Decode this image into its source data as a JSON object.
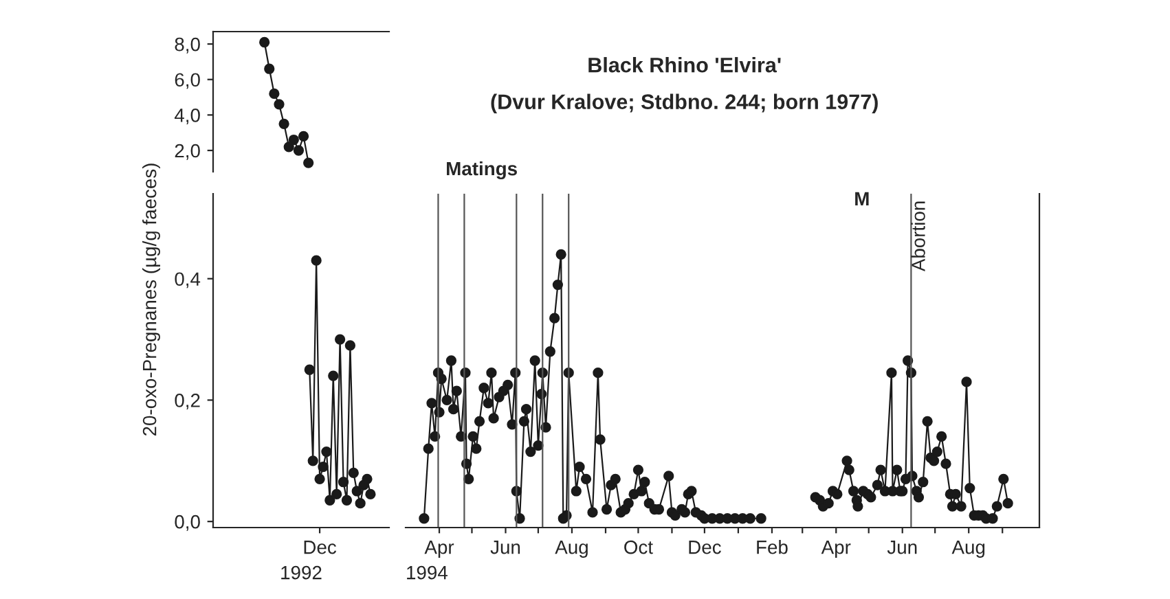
{
  "chart_data": [
    {
      "type": "line",
      "categories": [
        null,
        null,
        null,
        null,
        null,
        null,
        null,
        null,
        null,
        null,
        null,
        null,
        null,
        null,
        null,
        null,
        null,
        null,
        null,
        null,
        null,
        null,
        null,
        null,
        null,
        null,
        null,
        null,
        null,
        null,
        null,
        null,
        null,
        null,
        null,
        null
      ],
      "ylim": [
        0.8,
        8.7
      ],
      "yticks": [
        {
          "value": 2,
          "label": "2,0"
        },
        {
          "value": 4,
          "label": "4,0"
        },
        {
          "value": 6,
          "label": "6,0"
        },
        {
          "value": 8,
          "label": "8,0"
        }
      ],
      "tick_labels": "y",
      "marker": "circle",
      "line_style": "solid",
      "grid": false,
      "legend": false,
      "series": [
        {
          "color": "#1a1a1a",
          "values": [
            null,
            null,
            null,
            null,
            null,
            null,
            null,
            null,
            null,
            null,
            8.1,
            6.6,
            5.2,
            4.6,
            3.5,
            2.2,
            2.6,
            2.0,
            2.8,
            1.3,
            null,
            null,
            null,
            null,
            null,
            null,
            null,
            null,
            null,
            null,
            null,
            null,
            null,
            null,
            null,
            null
          ]
        }
      ]
    },
    {
      "type": "line",
      "categories": [
        null,
        null,
        null,
        null,
        null,
        null,
        null,
        null,
        null,
        null,
        null,
        null,
        null,
        null,
        null,
        null,
        null,
        null,
        null,
        null,
        null,
        null,
        null,
        null,
        null,
        null,
        null,
        null,
        null,
        null,
        null,
        "Dec",
        null,
        null,
        null,
        null,
        null,
        null,
        null,
        null,
        null,
        null,
        null,
        null,
        null,
        null,
        null,
        null,
        null,
        null,
        null,
        null
      ],
      "ylim": [
        -0.01,
        0.54
      ],
      "yticks": [
        {
          "value": 0,
          "label": "0,0"
        },
        {
          "value": 0.2,
          "label": "0,2"
        },
        {
          "value": 0.4,
          "label": "0,4"
        }
      ],
      "xlabel": "1992",
      "ylabel": "20-oxo-Pregnanes (µg/g faeces)",
      "marker": "circle",
      "line_style": "solid",
      "grid": false,
      "legend": false,
      "series": [
        {
          "color": "#1a1a1a",
          "values": [
            null,
            null,
            null,
            null,
            null,
            null,
            null,
            null,
            null,
            null,
            null,
            null,
            null,
            null,
            null,
            null,
            null,
            null,
            null,
            null,
            null,
            null,
            null,
            null,
            null,
            null,
            null,
            null,
            0.25,
            0.1,
            0.43,
            0.07,
            0.09,
            0.115,
            0.035,
            0.24,
            0.045,
            0.3,
            0.065,
            0.035,
            0.29,
            0.08,
            0.05,
            0.03,
            0.06,
            0.07,
            0.045,
            null,
            null,
            null,
            null,
            null
          ]
        }
      ]
    },
    {
      "type": "line",
      "xlim": [
        "1994-03-01",
        "1995-10-05"
      ],
      "ylim": [
        -0.01,
        0.54
      ],
      "xticks": [
        {
          "value": "1994-04-01",
          "label": "Apr"
        },
        {
          "value": "1994-05-01",
          "label": null
        },
        {
          "value": "1994-06-01",
          "label": "Jun"
        },
        {
          "value": "1994-07-01",
          "label": null
        },
        {
          "value": "1994-08-01",
          "label": "Aug"
        },
        {
          "value": "1994-09-01",
          "label": null
        },
        {
          "value": "1994-10-01",
          "label": "Oct"
        },
        {
          "value": "1994-11-01",
          "label": null
        },
        {
          "value": "1994-12-01",
          "label": "Dec"
        },
        {
          "value": "1995-01-01",
          "label": null
        },
        {
          "value": "1995-02-01",
          "label": "Feb"
        },
        {
          "value": "1995-03-01",
          "label": null
        },
        {
          "value": "1995-04-01",
          "label": "Apr"
        },
        {
          "value": "1995-05-01",
          "label": null
        },
        {
          "value": "1995-06-01",
          "label": "Jun"
        },
        {
          "value": "1995-07-01",
          "label": null
        },
        {
          "value": "1995-08-01",
          "label": "Aug"
        },
        {
          "value": "1995-09-01",
          "label": null
        }
      ],
      "yticks": [
        {
          "value": 0,
          "label": null
        },
        {
          "value": 0.2,
          "label": null
        },
        {
          "value": 0.4,
          "label": null
        }
      ],
      "tick_labels": "x",
      "xlabel": "1994",
      "title": "Black Rhino 'Elvira'",
      "subtitle": "(Dvur Kralove; Stdbno. 244; born 1977)",
      "marker": "circle",
      "line_style": "solid",
      "grid": false,
      "legend": false,
      "ref_lines": [
        {
          "axis": "x",
          "value": "1994-03-31",
          "color": "#555555"
        },
        {
          "axis": "x",
          "value": "1994-04-24",
          "color": "#555555"
        },
        {
          "axis": "x",
          "value": "1994-06-11",
          "color": "#555555"
        },
        {
          "axis": "x",
          "value": "1994-07-05",
          "color": "#555555"
        },
        {
          "axis": "x",
          "value": "1994-07-29",
          "color": "#555555"
        },
        {
          "axis": "x",
          "value": "1995-06-09",
          "label": "Abortion",
          "color": "#555555"
        }
      ],
      "annotations": [
        "Matings",
        "M"
      ],
      "series": [
        {
          "color": "#1a1a1a",
          "x": [
            "1994-03-18",
            "1994-03-22",
            "1994-03-25",
            "1994-03-28",
            "1994-03-31",
            "1994-04-01",
            "1994-04-03",
            "1994-04-08",
            "1994-04-12",
            "1994-04-14",
            "1994-04-17",
            "1994-04-21",
            "1994-04-25",
            "1994-04-26",
            "1994-04-28",
            "1994-05-02",
            "1994-05-05",
            "1994-05-08",
            "1994-05-12",
            "1994-05-16",
            "1994-05-19",
            "1994-05-21",
            "1994-05-26",
            "1994-05-30",
            "1994-06-03",
            "1994-06-07",
            "1994-06-10",
            "1994-06-11",
            "1994-06-14",
            "1994-06-18",
            "1994-06-20",
            "1994-06-24",
            "1994-06-28",
            "1994-07-01",
            "1994-07-04",
            "1994-07-05",
            "1994-07-08",
            "1994-07-12",
            "1994-07-16",
            "1994-07-19",
            "1994-07-22",
            "1994-07-24",
            "1994-07-27",
            "1994-07-29",
            "1994-08-05",
            "1994-08-08",
            "1994-08-14",
            "1994-08-20",
            "1994-08-25",
            "1994-08-27",
            "1994-09-02",
            "1994-09-06",
            "1994-09-10",
            "1994-09-15",
            "1994-09-19",
            "1994-09-22",
            "1994-09-27",
            "1994-10-01",
            "1994-10-04",
            "1994-10-07",
            "1994-10-11",
            "1994-10-16",
            "1994-10-20",
            "1994-10-29",
            "1994-11-01",
            "1994-11-04",
            "1994-11-10",
            "1994-11-13",
            "1994-11-16",
            "1994-11-19",
            "1994-11-23",
            "1994-11-28",
            "1994-12-01",
            "1994-12-08",
            "1994-12-15",
            "1994-12-22",
            "1994-12-29",
            "1995-01-05",
            "1995-01-12",
            "1995-01-22",
            "1995-02-15",
            "1995-03-13",
            "1995-03-17",
            "1995-03-20",
            "1995-03-25",
            "1995-03-29",
            "1995-04-02",
            "1995-04-11",
            "1995-04-13",
            "1995-04-17",
            "1995-04-20",
            "1995-04-21",
            "1995-04-26",
            "1995-04-30",
            "1995-05-03",
            "1995-05-09",
            "1995-05-12",
            "1995-05-16",
            "1995-05-22",
            "1995-05-23",
            "1995-05-27",
            "1995-05-30",
            "1995-06-01",
            "1995-06-04",
            "1995-06-06",
            "1995-06-09",
            "1995-06-10",
            "1995-06-14",
            "1995-06-16",
            "1995-06-20",
            "1995-06-24",
            "1995-06-27",
            "1995-06-30",
            "1995-07-03",
            "1995-07-07",
            "1995-07-11",
            "1995-07-15",
            "1995-07-17",
            "1995-07-20",
            "1995-07-25",
            "1995-07-30",
            "1995-08-02",
            "1995-08-06",
            "1995-08-10",
            "1995-08-14",
            "1995-08-17",
            "1995-08-23",
            "1995-08-27",
            "1995-09-02",
            "1995-09-06"
          ],
          "values": [
            0.005,
            0.12,
            0.195,
            0.14,
            0.245,
            0.18,
            0.235,
            0.2,
            0.265,
            0.185,
            0.215,
            0.14,
            0.245,
            0.095,
            0.07,
            0.14,
            0.12,
            0.165,
            0.22,
            0.195,
            0.245,
            0.17,
            0.205,
            0.215,
            0.225,
            0.16,
            0.245,
            0.05,
            0.005,
            0.165,
            0.185,
            0.115,
            0.265,
            0.125,
            0.21,
            0.245,
            0.155,
            0.28,
            0.335,
            0.39,
            0.44,
            0.005,
            0.01,
            0.245,
            0.05,
            0.09,
            0.07,
            0.015,
            0.245,
            0.135,
            0.02,
            0.06,
            0.07,
            0.015,
            0.02,
            0.03,
            0.045,
            0.085,
            0.05,
            0.065,
            0.03,
            0.02,
            0.02,
            0.075,
            0.015,
            0.01,
            0.02,
            0.015,
            0.045,
            0.05,
            0.015,
            0.01,
            0.005,
            0.005,
            0.005,
            0.005,
            0.005,
            0.005,
            0.005,
            0.005,
            null,
            0.04,
            0.035,
            0.025,
            0.03,
            0.05,
            0.045,
            0.1,
            0.085,
            0.05,
            0.035,
            0.025,
            0.05,
            0.045,
            0.04,
            0.06,
            0.085,
            0.05,
            0.245,
            0.05,
            0.085,
            0.05,
            0.05,
            0.07,
            0.265,
            0.245,
            0.075,
            0.05,
            0.04,
            0.065,
            0.165,
            0.105,
            0.1,
            0.115,
            0.14,
            0.095,
            0.045,
            0.025,
            0.045,
            0.025,
            0.23,
            0.055,
            0.01,
            0.01,
            0.01,
            0.005,
            0.005,
            0.025,
            0.07,
            0.03
          ]
        }
      ]
    }
  ]
}
